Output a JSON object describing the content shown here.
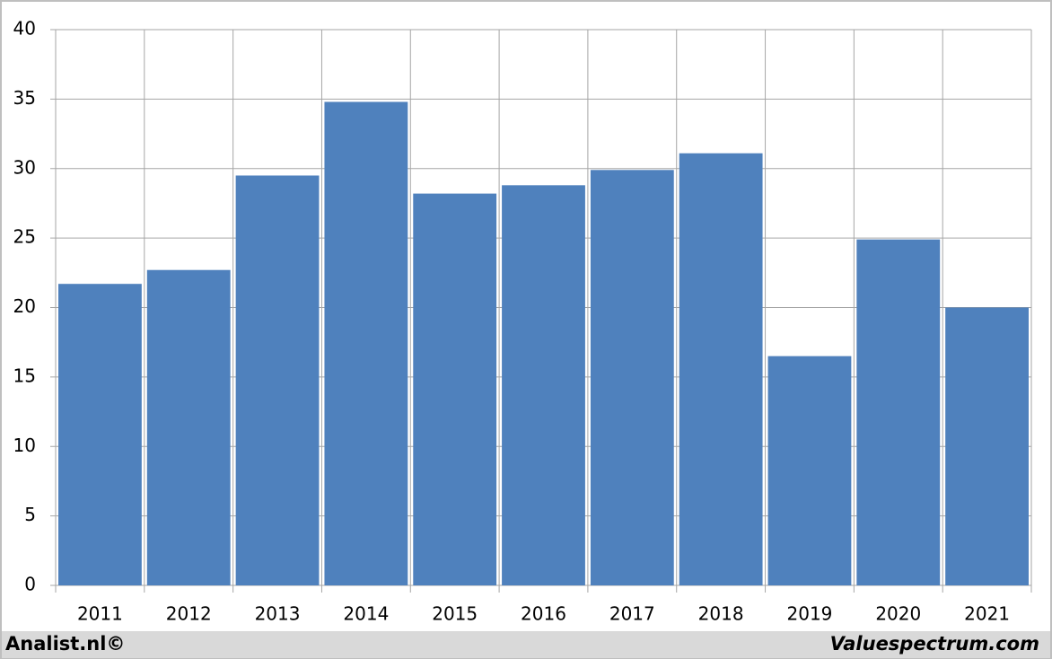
{
  "chart_data": {
    "type": "bar",
    "categories": [
      "2011",
      "2012",
      "2013",
      "2014",
      "2015",
      "2016",
      "2017",
      "2018",
      "2019",
      "2020",
      "2021"
    ],
    "values": [
      21.7,
      22.7,
      29.5,
      34.8,
      28.2,
      28.8,
      29.9,
      31.1,
      16.5,
      24.9,
      20.0
    ],
    "color": "#4f81bd",
    "ylim": [
      0,
      40
    ],
    "yticks": [
      0,
      5,
      10,
      15,
      20,
      25,
      30,
      35,
      40
    ],
    "grid": true,
    "credit_left": "Analist.nl©",
    "credit_right": "Valuespectrum.com"
  }
}
